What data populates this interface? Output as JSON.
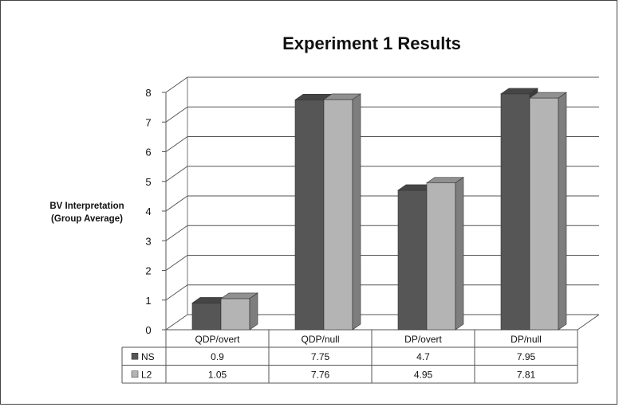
{
  "chart_data": {
    "type": "bar",
    "title": "Experiment 1 Results",
    "ylabel_lines": [
      "BV Interpretation",
      "(Group Average)"
    ],
    "categories": [
      "QDP/overt",
      "QDP/null",
      "DP/overt",
      "DP/null"
    ],
    "series": [
      {
        "name": "NS",
        "values": [
          0.9,
          7.75,
          4.7,
          7.95
        ],
        "color": "#565656"
      },
      {
        "name": "L2",
        "values": [
          1.05,
          7.76,
          4.95,
          7.81
        ],
        "color": "#b4b4b4"
      }
    ],
    "data_labels": [
      [
        "0.9",
        "7.75",
        "4.7",
        "7.95"
      ],
      [
        "1.05",
        "7.76",
        "4.95",
        "7.81"
      ]
    ],
    "yticks": [
      "0",
      "1",
      "2",
      "3",
      "4",
      "5",
      "6",
      "7",
      "8"
    ],
    "ylim": [
      0,
      8
    ],
    "grid": true,
    "legend": "data-table"
  }
}
